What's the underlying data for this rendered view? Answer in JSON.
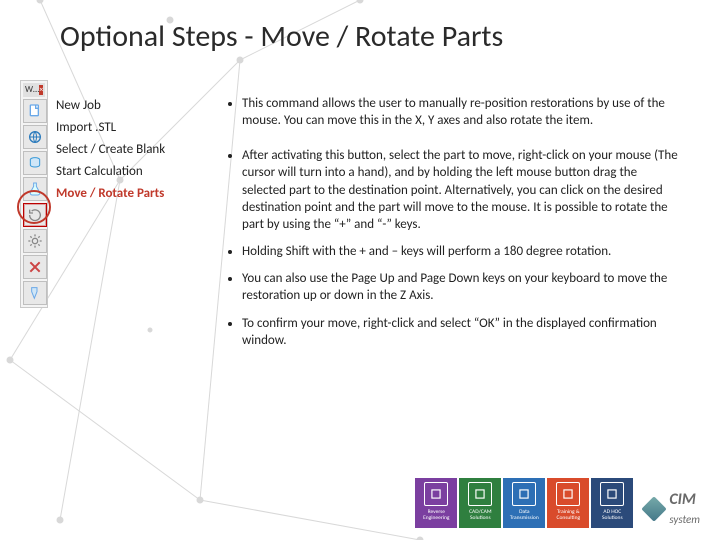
{
  "title": "Optional Steps - Move / Rotate Parts",
  "background": {
    "dot_color": "#d8d8d8",
    "line_color": "#d8d8d8"
  },
  "toolbar": {
    "tab_label": "W…",
    "selected_index": 4,
    "circle_color": "#c0392b",
    "buttons": [
      {
        "name": "new-job-icon",
        "type": "doc",
        "color": "#6aa8e8"
      },
      {
        "name": "import-stl-icon",
        "type": "globe",
        "color": "#2b7bbd"
      },
      {
        "name": "blank-icon",
        "type": "cyl",
        "color": "#3a9ad9"
      },
      {
        "name": "calc-icon",
        "type": "flask",
        "color": "#6aa8e8"
      },
      {
        "name": "move-rotate-icon",
        "type": "rotate",
        "color": "#888888"
      },
      {
        "name": "tool6-icon",
        "type": "gear",
        "color": "#888888"
      },
      {
        "name": "tool7-icon",
        "type": "cross",
        "color": "#c44"
      },
      {
        "name": "tool8-icon",
        "type": "drill",
        "color": "#6aa8e8"
      }
    ]
  },
  "steps": {
    "items": [
      {
        "label": "New Job",
        "active": false
      },
      {
        "label": "Import .STL",
        "active": false
      },
      {
        "label": "Select / Create Blank",
        "active": false
      },
      {
        "label": "Start Calculation",
        "active": false
      },
      {
        "label": "Move / Rotate Parts",
        "active": true
      }
    ],
    "active_color": "#c0392b"
  },
  "bullets": [
    "This command allows the user to manually re-position restorations by use of the mouse. You can move this in the X, Y axes and also rotate the item.",
    "After activating this button, select the part to move, right-click on your mouse (The cursor will turn into a hand), and by holding the left mouse button drag the selected part to the destination point. Alternatively, you can click on the desired destination point and the part will move to the mouse. It is possible to rotate the part by using the “+” and “-” keys.",
    "Holding Shift with the + and – keys will perform a 180 degree rotation.",
    "You can also use the Page Up and Page Down keys on your keyboard to move the restoration up or down in the Z Axis.",
    "To confirm your move, right-click and select “OK” in the displayed confirmation window."
  ],
  "footer": {
    "cards": [
      {
        "label": "Reverse Engineering",
        "color": "#7b3fa0"
      },
      {
        "label": "CAD/CAM Solutions",
        "color": "#2f7f3f"
      },
      {
        "label": "Data Transmission",
        "color": "#2d6fb5"
      },
      {
        "label": "Training & Consulting",
        "color": "#d94b2b"
      },
      {
        "label": "AD HOC Solutions",
        "color": "#2b4a7a"
      }
    ],
    "logo_text_1": "CIM",
    "logo_text_2": "system"
  }
}
